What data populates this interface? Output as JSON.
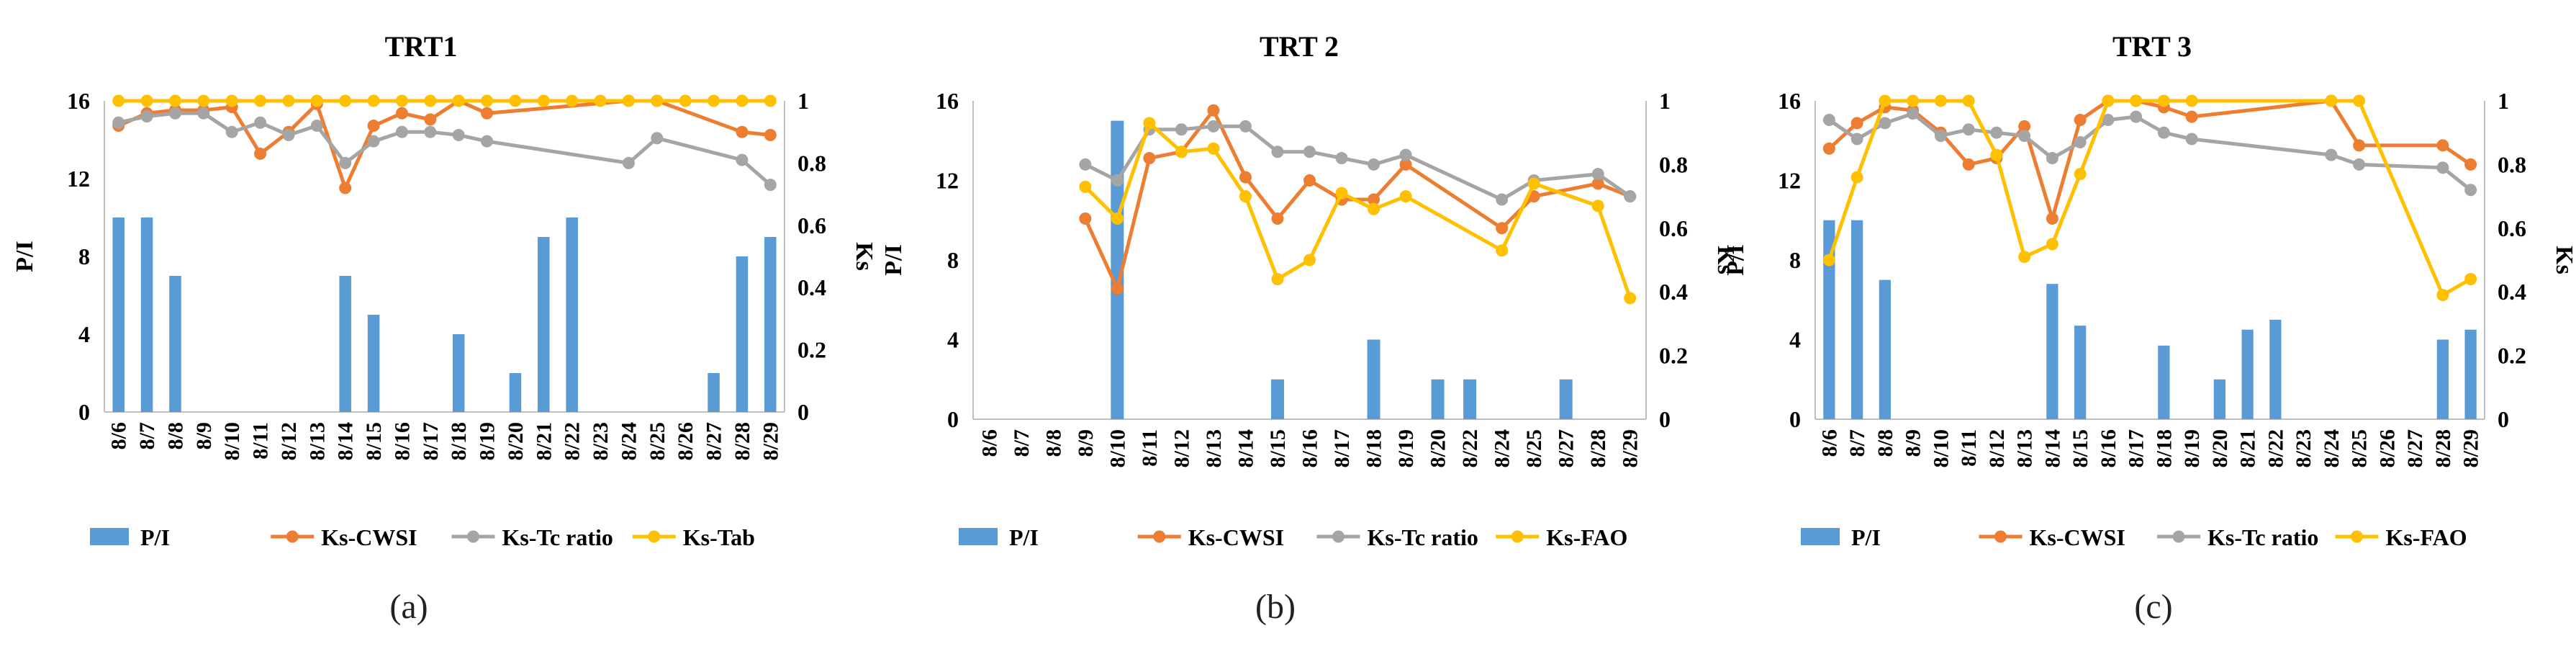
{
  "colors": {
    "pi": "#5B9BD5",
    "cwsi": "#ED7D31",
    "tc": "#A5A5A5",
    "ks3": "#FFC000",
    "axis": "#BFBFBF",
    "text": "#000000"
  },
  "subfigure_labels": [
    "(a)",
    "(b)",
    "(c)"
  ],
  "chart_data": [
    {
      "type": "bar+line",
      "title": "TRT1",
      "ylabel_left": "P/I",
      "ylabel_right": "Ks",
      "ylim_left": [
        0,
        16
      ],
      "yticks_left": [
        "0",
        "4",
        "8",
        "12",
        "16"
      ],
      "ylim_right": [
        0,
        1
      ],
      "yticks_right": [
        "0",
        "0.2",
        "0.4",
        "0.6",
        "0.8",
        "1"
      ],
      "categories": [
        "8/6",
        "8/7",
        "8/8",
        "8/9",
        "8/10",
        "8/11",
        "8/12",
        "8/13",
        "8/14",
        "8/15",
        "8/16",
        "8/17",
        "8/18",
        "8/19",
        "8/20",
        "8/21",
        "8/22",
        "8/23",
        "8/24",
        "8/25",
        "8/26",
        "8/27",
        "8/28",
        "8/29"
      ],
      "bars": {
        "name": "P/I",
        "values": [
          10,
          10,
          7,
          0,
          0,
          0,
          0,
          0,
          7,
          5,
          0,
          0,
          4,
          0,
          2,
          9,
          10,
          0,
          0,
          0,
          0,
          2,
          8,
          9
        ]
      },
      "lines": [
        {
          "name": "Ks-CWSI",
          "key": "cwsi",
          "values": [
            0.92,
            0.96,
            0.97,
            0.97,
            0.98,
            0.83,
            0.9,
            0.99,
            0.72,
            0.92,
            0.96,
            0.94,
            1.0,
            0.96,
            null,
            null,
            null,
            null,
            1.0,
            1.0,
            null,
            null,
            0.9,
            0.89
          ]
        },
        {
          "name": "Ks-Tc ratio",
          "key": "tc",
          "values": [
            0.93,
            0.95,
            0.96,
            0.96,
            0.9,
            0.93,
            0.89,
            0.92,
            0.8,
            0.87,
            0.9,
            0.9,
            0.89,
            0.87,
            null,
            null,
            null,
            null,
            0.8,
            0.88,
            null,
            null,
            0.81,
            0.73
          ]
        },
        {
          "name": "Ks-Tab",
          "key": "ks3",
          "values": [
            1,
            1,
            1,
            1,
            1,
            1,
            1,
            1,
            1,
            1,
            1,
            1,
            1,
            1,
            1,
            1,
            1,
            1,
            1,
            1,
            1,
            1,
            1,
            1
          ]
        }
      ],
      "legend": [
        "P/I",
        "Ks-CWSI",
        "Ks-Tc ratio",
        "Ks-Tab"
      ]
    },
    {
      "type": "bar+line",
      "title": "TRT 2",
      "ylabel_left": "P/I",
      "ylabel_right": "Ks",
      "ylim_left": [
        0,
        16
      ],
      "yticks_left": [
        "0",
        "4",
        "8",
        "12",
        "16"
      ],
      "ylim_right": [
        0,
        1
      ],
      "yticks_right": [
        "0",
        "0.2",
        "0.4",
        "0.6",
        "0.8",
        "1"
      ],
      "categories": [
        "8/6",
        "8/7",
        "8/8",
        "8/9",
        "8/10",
        "8/11",
        "8/12",
        "8/13",
        "8/14",
        "8/15",
        "8/16",
        "8/17",
        "8/18",
        "8/19",
        "8/20",
        "8/22",
        "8/24",
        "8/25",
        "8/27",
        "8/28",
        "8/29"
      ],
      "bars": {
        "name": "P/I",
        "values": [
          0,
          0,
          0,
          0,
          15,
          0,
          0,
          0,
          0,
          2,
          0,
          0,
          4,
          0,
          2,
          2,
          0,
          0,
          2,
          0,
          0
        ]
      },
      "lines": [
        {
          "name": "Ks-CWSI",
          "key": "cwsi",
          "values": [
            null,
            null,
            null,
            0.63,
            0.41,
            0.82,
            0.84,
            0.97,
            0.76,
            0.63,
            0.75,
            0.69,
            0.69,
            0.8,
            null,
            null,
            0.6,
            0.7,
            null,
            0.74,
            0.7
          ]
        },
        {
          "name": "Ks-Tc ratio",
          "key": "tc",
          "values": [
            null,
            null,
            null,
            0.8,
            0.75,
            0.91,
            0.91,
            0.92,
            0.92,
            0.84,
            0.84,
            0.82,
            0.8,
            0.83,
            null,
            null,
            0.69,
            0.75,
            null,
            0.77,
            0.7
          ]
        },
        {
          "name": "Ks-FAO",
          "key": "ks3",
          "values": [
            null,
            null,
            null,
            0.73,
            0.63,
            0.93,
            0.84,
            0.85,
            0.7,
            0.44,
            0.5,
            0.71,
            0.66,
            0.7,
            null,
            null,
            0.53,
            0.74,
            null,
            0.67,
            0.38
          ]
        }
      ],
      "legend": [
        "P/I",
        "Ks-CWSI",
        "Ks-Tc ratio",
        "Ks-FAO"
      ]
    },
    {
      "type": "bar+line",
      "title": "TRT 3",
      "ylabel_left": "P/I",
      "ylabel_right": "Ks",
      "ylim_left": [
        0,
        16
      ],
      "yticks_left": [
        "0",
        "4",
        "8",
        "12",
        "16"
      ],
      "ylim_right": [
        0,
        1
      ],
      "yticks_right": [
        "0",
        "0.2",
        "0.4",
        "0.6",
        "0.8",
        "1"
      ],
      "categories": [
        "8/6",
        "8/7",
        "8/8",
        "8/9",
        "8/10",
        "8/11",
        "8/12",
        "8/13",
        "8/14",
        "8/15",
        "8/16",
        "8/17",
        "8/18",
        "8/19",
        "8/20",
        "8/21",
        "8/22",
        "8/23",
        "8/24",
        "8/25",
        "8/26",
        "8/27",
        "8/28",
        "8/29"
      ],
      "bars": {
        "name": "P/I",
        "values": [
          10,
          10,
          7,
          0,
          0,
          0,
          0,
          0,
          6.8,
          4.7,
          0,
          0,
          3.7,
          0,
          2,
          4.5,
          5,
          0,
          0,
          0,
          0,
          0,
          4,
          4.5
        ]
      },
      "lines": [
        {
          "name": "Ks-CWSI",
          "key": "cwsi",
          "values": [
            0.85,
            0.93,
            0.98,
            0.97,
            0.9,
            0.8,
            0.82,
            0.92,
            0.63,
            0.94,
            1.0,
            1.0,
            0.98,
            0.95,
            null,
            null,
            null,
            null,
            1.0,
            0.86,
            null,
            null,
            0.86,
            0.8
          ]
        },
        {
          "name": "Ks-Tc ratio",
          "key": "tc",
          "values": [
            0.94,
            0.88,
            0.93,
            0.96,
            0.89,
            0.91,
            0.9,
            0.89,
            0.82,
            0.87,
            0.94,
            0.95,
            0.9,
            0.88,
            null,
            null,
            null,
            null,
            0.83,
            0.8,
            null,
            null,
            0.79,
            0.72
          ]
        },
        {
          "name": "Ks-FAO",
          "key": "ks3",
          "values": [
            0.5,
            0.76,
            1.0,
            1.0,
            1.0,
            1.0,
            0.83,
            0.51,
            0.55,
            0.77,
            1.0,
            1.0,
            1.0,
            1.0,
            null,
            null,
            null,
            null,
            1.0,
            1.0,
            null,
            null,
            0.39,
            0.44
          ]
        }
      ],
      "legend": [
        "P/I",
        "Ks-CWSI",
        "Ks-Tc ratio",
        "Ks-FAO"
      ]
    }
  ]
}
